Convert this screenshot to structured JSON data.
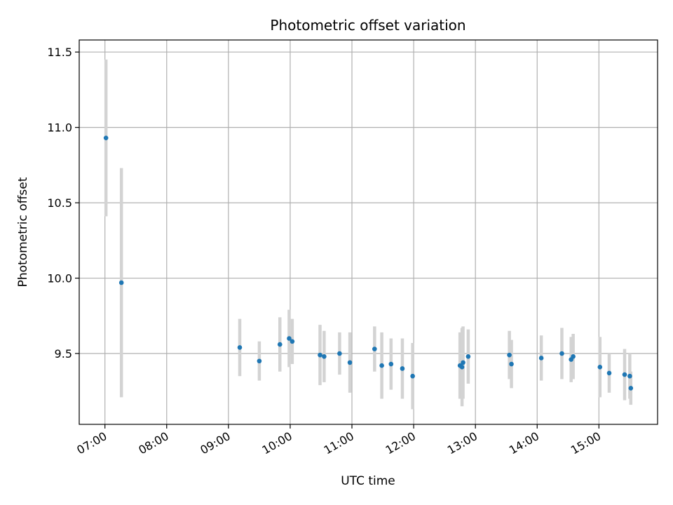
{
  "chart_data": {
    "type": "scatter",
    "title": "Photometric offset variation",
    "xlabel": "UTC time",
    "ylabel": "Photometric offset",
    "x_axis": "time",
    "xlim": [
      "06:35",
      "15:57"
    ],
    "ylim": [
      9.03,
      11.58
    ],
    "x_ticks": [
      "07:00",
      "08:00",
      "09:00",
      "10:00",
      "11:00",
      "12:00",
      "13:00",
      "14:00",
      "15:00"
    ],
    "y_ticks": [
      9.5,
      10.0,
      10.5,
      11.0,
      11.5
    ],
    "y_tick_labels": [
      "9.5",
      "10.0",
      "10.5",
      "11.0",
      "11.5"
    ],
    "grid": true,
    "point_color": "#1f77b4",
    "errorbar_color": "#d3d3d3",
    "points": [
      {
        "x": "07:01",
        "y": 10.93,
        "yerr": 0.52
      },
      {
        "x": "07:16",
        "y": 9.97,
        "yerr": 0.76
      },
      {
        "x": "09:11",
        "y": 9.54,
        "yerr": 0.19
      },
      {
        "x": "09:30",
        "y": 9.45,
        "yerr": 0.13
      },
      {
        "x": "09:50",
        "y": 9.56,
        "yerr": 0.18
      },
      {
        "x": "09:59",
        "y": 9.6,
        "yerr": 0.19
      },
      {
        "x": "10:02",
        "y": 9.58,
        "yerr": 0.15
      },
      {
        "x": "10:29",
        "y": 9.49,
        "yerr": 0.2
      },
      {
        "x": "10:33",
        "y": 9.48,
        "yerr": 0.17
      },
      {
        "x": "10:48",
        "y": 9.5,
        "yerr": 0.14
      },
      {
        "x": "10:58",
        "y": 9.44,
        "yerr": 0.2
      },
      {
        "x": "11:22",
        "y": 9.53,
        "yerr": 0.15
      },
      {
        "x": "11:29",
        "y": 9.42,
        "yerr": 0.22
      },
      {
        "x": "11:38",
        "y": 9.43,
        "yerr": 0.17
      },
      {
        "x": "11:49",
        "y": 9.4,
        "yerr": 0.2
      },
      {
        "x": "11:59",
        "y": 9.35,
        "yerr": 0.22
      },
      {
        "x": "12:45",
        "y": 9.42,
        "yerr": 0.22
      },
      {
        "x": "12:47",
        "y": 9.41,
        "yerr": 0.26
      },
      {
        "x": "12:48",
        "y": 9.44,
        "yerr": 0.24
      },
      {
        "x": "12:53",
        "y": 9.48,
        "yerr": 0.18
      },
      {
        "x": "13:33",
        "y": 9.49,
        "yerr": 0.16
      },
      {
        "x": "13:35",
        "y": 9.43,
        "yerr": 0.16
      },
      {
        "x": "14:04",
        "y": 9.47,
        "yerr": 0.15
      },
      {
        "x": "14:24",
        "y": 9.5,
        "yerr": 0.17
      },
      {
        "x": "14:33",
        "y": 9.46,
        "yerr": 0.15
      },
      {
        "x": "14:35",
        "y": 9.48,
        "yerr": 0.15
      },
      {
        "x": "15:01",
        "y": 9.41,
        "yerr": 0.2
      },
      {
        "x": "15:10",
        "y": 9.37,
        "yerr": 0.13
      },
      {
        "x": "15:25",
        "y": 9.36,
        "yerr": 0.17
      },
      {
        "x": "15:30",
        "y": 9.35,
        "yerr": 0.15
      },
      {
        "x": "15:31",
        "y": 9.27,
        "yerr": 0.11
      }
    ]
  }
}
